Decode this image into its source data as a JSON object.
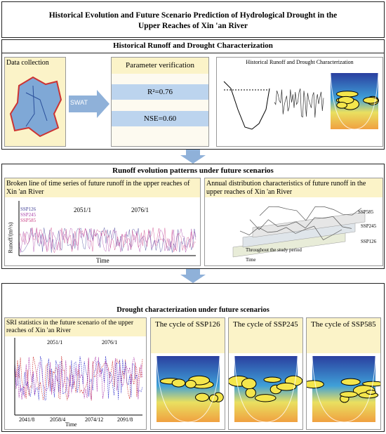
{
  "title": "Historical Evolution and Future Scenario Prediction of Hydrological Drought in the Upper Reaches of Xin 'an River",
  "section1": {
    "title": "Historical Runoff and Drought Characterization",
    "data_collection": "Data collection",
    "arrow_label": "SWAT",
    "verification_title": "Parameter verification",
    "metrics": [
      "R²=0.76",
      "NSE=0.60"
    ],
    "chart_title": "Historical Runoff and Drought Characterization"
  },
  "section2": {
    "title": "Runoff evolution patterns under future scenarios",
    "left": {
      "title": "Broken line of time series of future runoff in the upper reaches of Xin 'an River",
      "legend": [
        "SSP126",
        "SSP245",
        "SSP585"
      ],
      "annotations": [
        "2051/1",
        "2076/1"
      ],
      "y_label": "Runoff/(m³/s)",
      "x_label": "Time"
    },
    "right": {
      "title": "Annual distribution characteristics of future runoff in the upper reaches of Xin 'an River",
      "series": [
        "SSP585",
        "SSP245",
        "SSP126"
      ],
      "note": "Throughout the study period",
      "x_label": "Time"
    }
  },
  "section3": {
    "title": "Drought characterization under future scenarios",
    "left": {
      "title": "SRI statistics in the future scenario of the upper reaches of Xin 'an River",
      "annotations": [
        "2051/1",
        "2076/1"
      ],
      "x_ticks": [
        "2041/8",
        "2058/4",
        "2074/12",
        "2091/8"
      ],
      "x_label": "Time"
    },
    "cycles": [
      "The cycle of SSP126",
      "The cycle of SSP245",
      "The cycle of SSP585"
    ]
  }
}
